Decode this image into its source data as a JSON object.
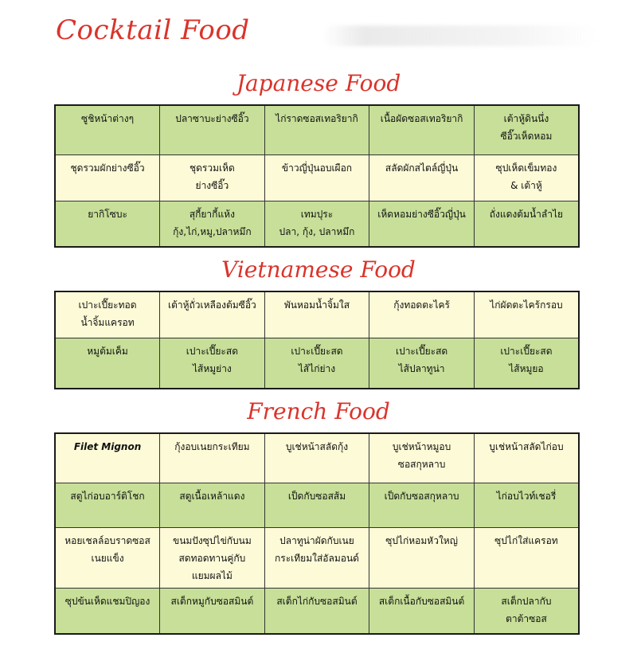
{
  "page_title": "Cocktail Food",
  "sections": {
    "japanese": {
      "title": "Japanese Food",
      "rows": [
        [
          [
            "ซูชิหน้าต่างๆ"
          ],
          [
            "ปลาซาบะย่างซีอิ๊ว"
          ],
          [
            "ไก่ราดซอสเทอริยากิ"
          ],
          [
            "เนื้อผัดซอสเทอริยากิ"
          ],
          [
            "เต้าหู้ดินนึ่ง",
            "ซีอิ๊วเห็ดหอม"
          ]
        ],
        [
          [
            "ชุดรวมผักย่างซีอิ๊ว"
          ],
          [
            "ชุดรวมเห็ด",
            "ย่างซีอิ๊ว"
          ],
          [
            "ข้าวญี่ปุ่นอบเผือก"
          ],
          [
            "สลัดผักสไตล์ญี่ปุ่น"
          ],
          [
            "ซุปเห็ดเข็มทอง",
            "& เต้าหู้"
          ]
        ],
        [
          [
            "ยากิโซบะ"
          ],
          [
            "สุกี้ยากี้แห้ง",
            "กุ้ง,ไก่,หมู,ปลาหมึก"
          ],
          [
            "เทมปุระ",
            "ปลา, กุ้ง, ปลาหมึก"
          ],
          [
            "เห็ดหอมย่างซีอิ๊วญี่ปุ่น"
          ],
          [
            "ถั่งแดงต้มน้ำลำไย"
          ]
        ]
      ]
    },
    "vietnamese": {
      "title": "Vietnamese Food",
      "rows": [
        [
          [
            "เปาะเปี๊ยะทอด",
            "น้ำจิ้มแครอท"
          ],
          [
            "เต้าหู้ถั่วเหลืองต้มซีอิ๊ว"
          ],
          [
            "พันหอมน้ำจิ้มใส"
          ],
          [
            "กุ้งทอดตะไคร้"
          ],
          [
            "ไก่ผัดตะไคร้กรอบ"
          ]
        ],
        [
          [
            "หมูต้มเค็ม"
          ],
          [
            "เปาะเปี๊ยะสด",
            "ไส้หมูย่าง"
          ],
          [
            "เปาะเปี๊ยะสด",
            "ไส้ไก่ย่าง"
          ],
          [
            "เปาะเปี๊ยะสด",
            "ไส้ปลาทูน่า"
          ],
          [
            "เปาะเปี๊ยะสด",
            "ไส้หมูยอ"
          ]
        ]
      ]
    },
    "french": {
      "title": "French Food",
      "rows": [
        [
          [
            "Filet Mignon"
          ],
          [
            "กุ้งอบเนยกระเทียม"
          ],
          [
            "บูเช่หน้าสลัดกุ้ง"
          ],
          [
            "บูเช่หน้าหมูอบ",
            "ซอสกุหลาบ"
          ],
          [
            "บูเช่หน้าสลัดไก่อบ"
          ]
        ],
        [
          [
            "สตูไก่อบอาร์ติโชก"
          ],
          [
            "สตูเนื้อเหล้าแดง"
          ],
          [
            "เป็ดกับซอสส้ม"
          ],
          [
            "เป็ดกับซอสกุหลาบ"
          ],
          [
            "ไก่อบไวท์เชอรี่"
          ]
        ],
        [
          [
            "หอยเชลล์อบราดซอส",
            "เนยแข็ง"
          ],
          [
            "ขนมปังซุปไข่กับนม",
            "สดทอดทานคู่กับ",
            "แยมผลไม้"
          ],
          [
            "ปลาทูน่าผัดกับเนย",
            "กระเทียมใส่อัลมอนด์"
          ],
          [
            "ซุปไก่หอมหัวใหญ่"
          ],
          [
            "ซุปไก่ใส่แครอท"
          ]
        ],
        [
          [
            "ซุปข้นเห็ดแชมปิญอง"
          ],
          [
            "สเต็กหมูกับซอสมินต์"
          ],
          [
            "สเต็กไก่กับซอสมินต์"
          ],
          [
            "สเต็กเนื้อกับซอสมินต์"
          ],
          [
            "สเต็กปลากับ",
            "ตาต้าซอส"
          ]
        ]
      ]
    }
  },
  "colors": {
    "title_red": "#d9342b",
    "cell_green": "#c7df98",
    "cell_cream": "#fdfad7"
  }
}
